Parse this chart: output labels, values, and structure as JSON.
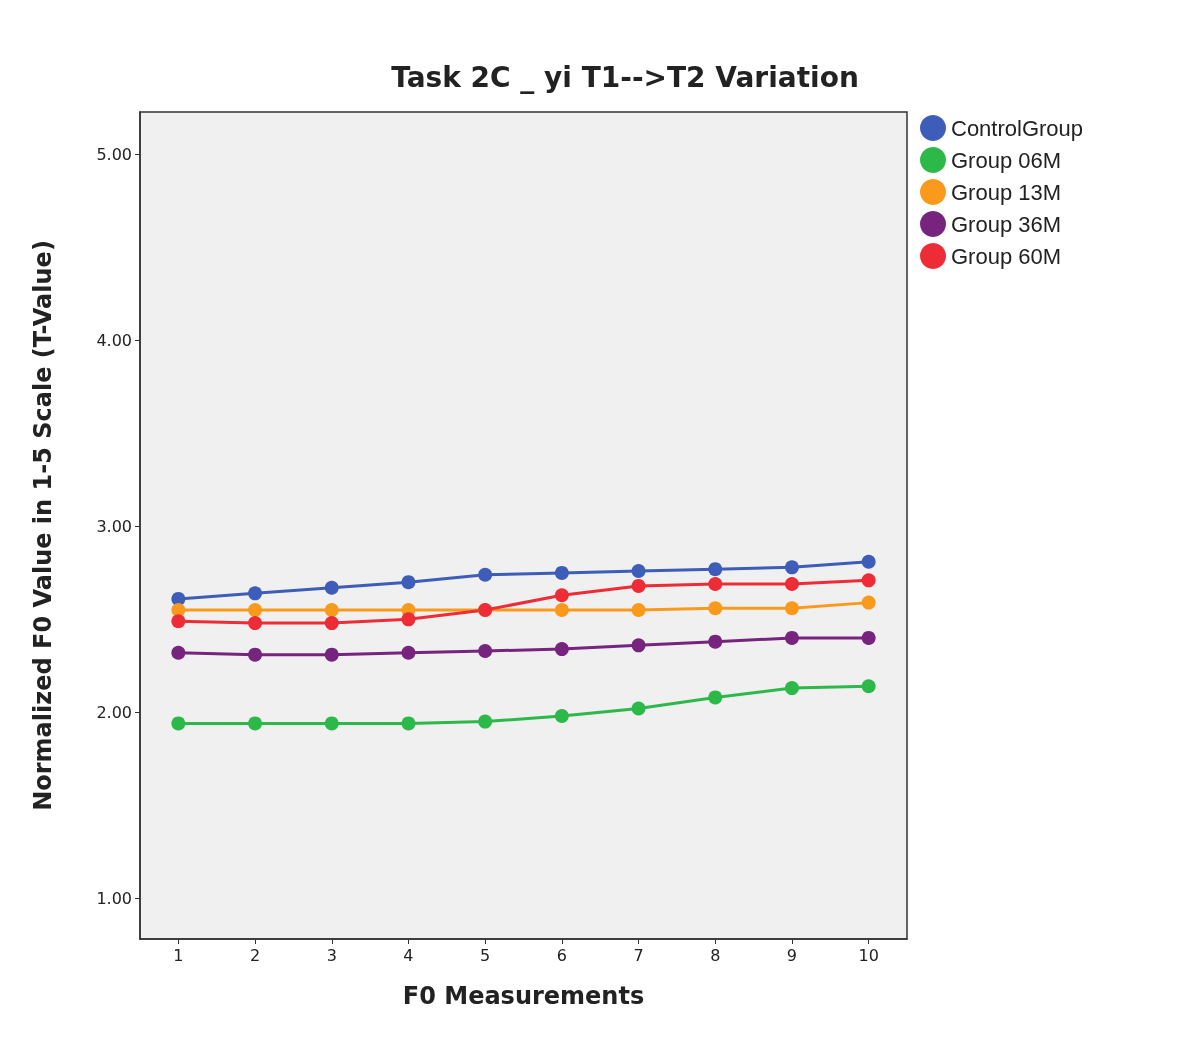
{
  "chart_data": {
    "type": "line",
    "title": "Task 2C _ yi T1-->T2 Variation",
    "xlabel": "F0 Measurements",
    "ylabel": "Normalized F0 Value in 1-5 Scale (T-Value)",
    "x": [
      1,
      2,
      3,
      4,
      5,
      6,
      7,
      8,
      9,
      10
    ],
    "series": [
      {
        "name": "ControlGroup",
        "color": "#3d5db8",
        "values": [
          2.61,
          2.64,
          2.67,
          2.7,
          2.74,
          2.75,
          2.76,
          2.77,
          2.78,
          2.81
        ]
      },
      {
        "name": "Group 06M",
        "color": "#2db84a",
        "values": [
          1.94,
          1.94,
          1.94,
          1.94,
          1.95,
          1.98,
          2.02,
          2.08,
          2.13,
          2.14
        ]
      },
      {
        "name": "Group 13M",
        "color": "#f99a1c",
        "values": [
          2.55,
          2.55,
          2.55,
          2.55,
          2.55,
          2.55,
          2.55,
          2.56,
          2.56,
          2.59
        ]
      },
      {
        "name": "Group 36M",
        "color": "#76247e",
        "values": [
          2.32,
          2.31,
          2.31,
          2.32,
          2.33,
          2.34,
          2.36,
          2.38,
          2.4,
          2.4
        ]
      },
      {
        "name": "Group 60M",
        "color": "#ee2c37",
        "values": [
          2.49,
          2.48,
          2.48,
          2.5,
          2.55,
          2.63,
          2.68,
          2.69,
          2.69,
          2.71
        ]
      }
    ],
    "xlim": [
      0.5,
      10.5
    ],
    "xticks": [
      1,
      2,
      3,
      4,
      5,
      6,
      7,
      8,
      9,
      10
    ],
    "ylim": [
      0.78,
      5.23
    ],
    "yticks": [
      {
        "value": 1,
        "label": "1.00"
      },
      {
        "value": 2,
        "label": "2.00"
      },
      {
        "value": 3,
        "label": "3.00"
      },
      {
        "value": 4,
        "label": "4.00"
      },
      {
        "value": 5,
        "label": "5.00"
      }
    ],
    "grid": false,
    "legend": "top right",
    "marker": "circle",
    "line_style": "solid"
  }
}
